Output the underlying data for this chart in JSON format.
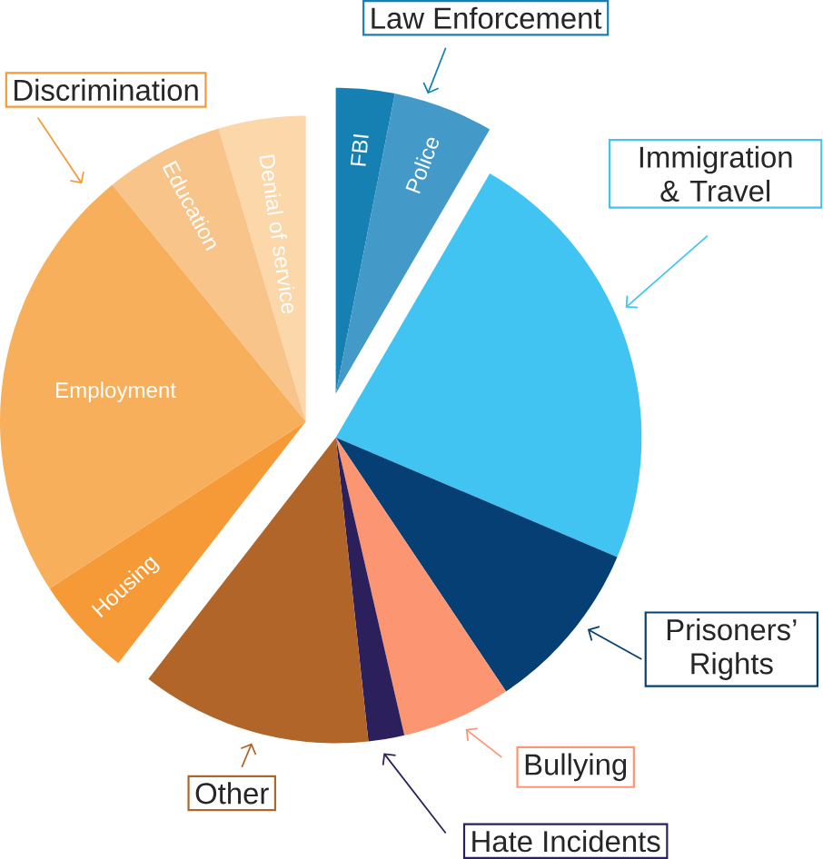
{
  "chart_data": {
    "type": "pie",
    "categories": [
      "FBI",
      "Police",
      "Immigration & Travel",
      "Prisoners’ Rights",
      "Bullying",
      "Hate Incidents",
      "Other",
      "Housing",
      "Employment",
      "Education",
      "Denial of service"
    ],
    "values": [
      3.1,
      5.3,
      23,
      9.2,
      5.8,
      1.9,
      12.2,
      5.3,
      23.3,
      6.3,
      4.6
    ],
    "colors": [
      "#1780b2",
      "#4399c7",
      "#42c4f2",
      "#063f74",
      "#fc9572",
      "#2b1f5c",
      "#b16528",
      "#f59a36",
      "#f7af5c",
      "#f8c48a",
      "#fbd7aa"
    ],
    "annotations": [
      "Law Enforcement",
      "Discrimination"
    ]
  }
}
